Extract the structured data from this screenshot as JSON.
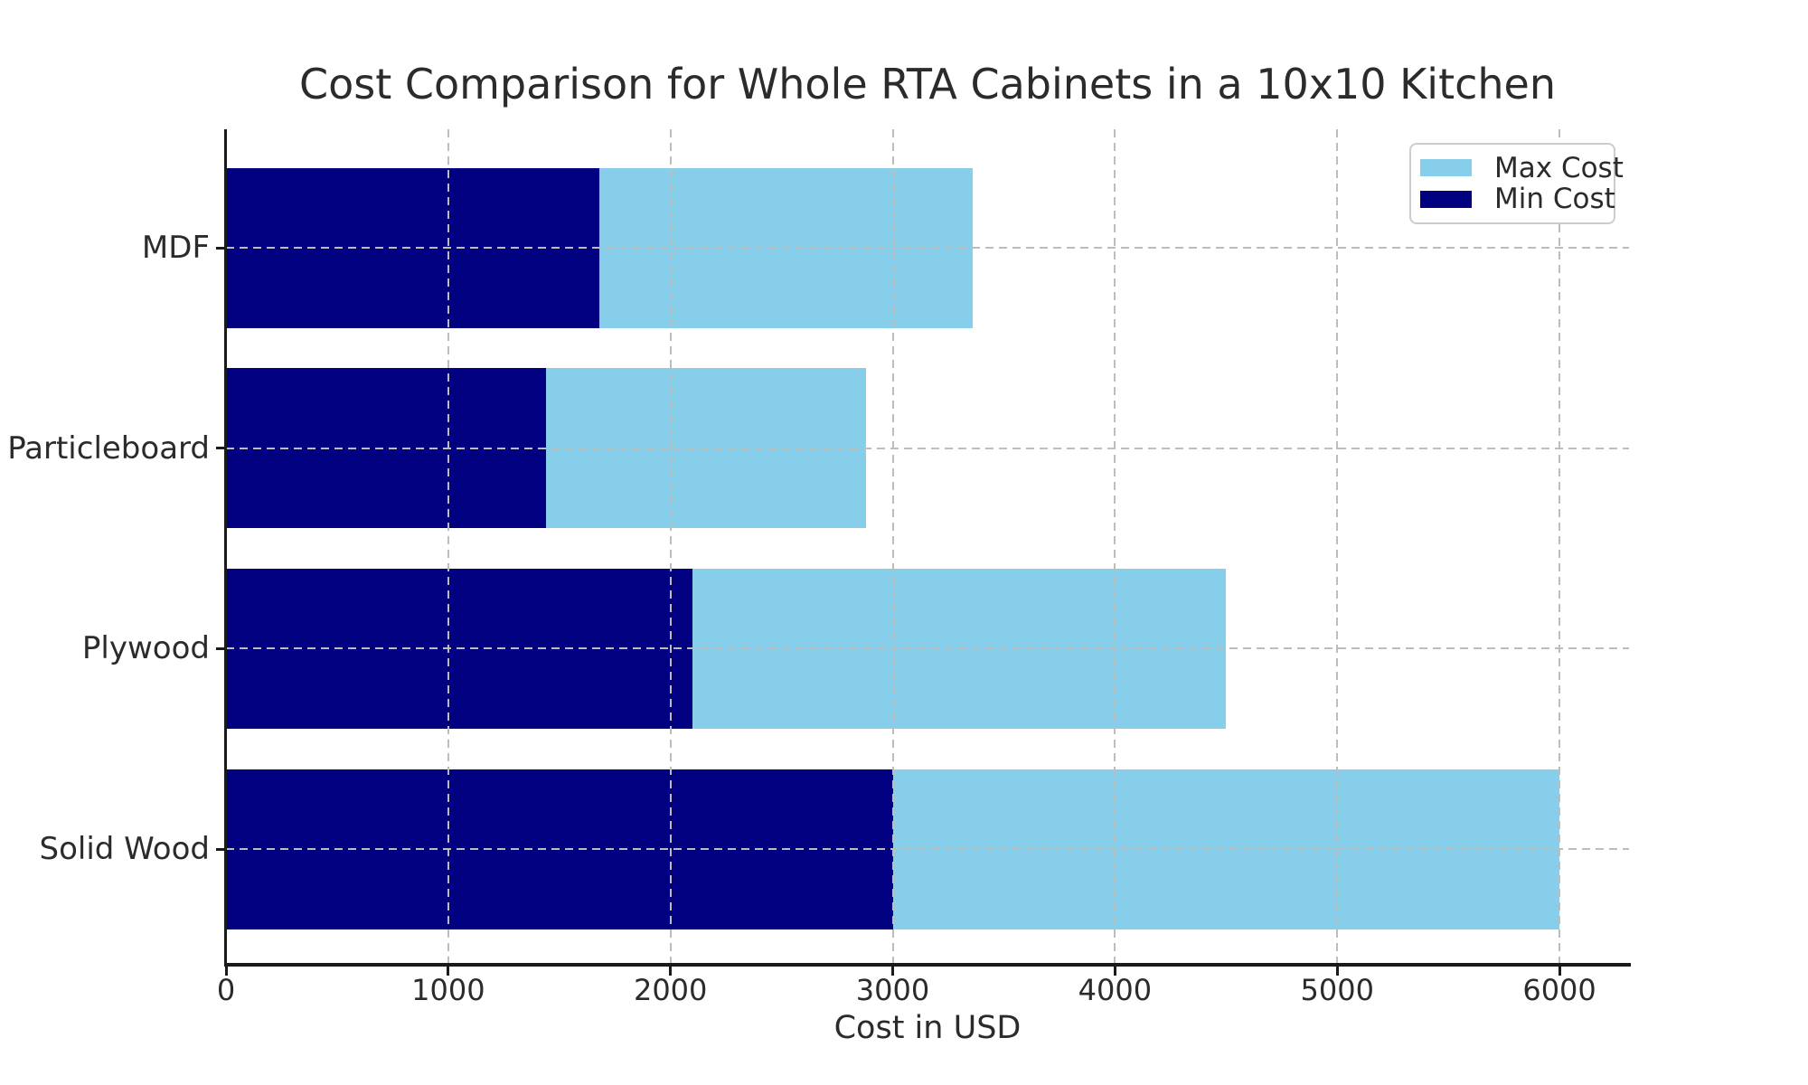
{
  "figure": {
    "background": "#ffffff"
  },
  "chart_data": {
    "type": "bar",
    "orientation": "horizontal",
    "title": "Cost Comparison for Whole RTA Cabinets in a 10x10 Kitchen",
    "xlabel": "Cost in USD",
    "ylabel": "",
    "categories": [
      "MDF",
      "Particleboard",
      "Plywood",
      "Solid Wood"
    ],
    "series": [
      {
        "name": "Max Cost",
        "color": "#87CEEB",
        "values": [
          3360,
          2880,
          4500,
          6000
        ]
      },
      {
        "name": "Min Cost",
        "color": "#000080",
        "values": [
          1680,
          1440,
          2100,
          3000
        ]
      }
    ],
    "x_ticks": [
      0,
      1000,
      2000,
      3000,
      4000,
      5000,
      6000
    ],
    "xlim": [
      0,
      6313
    ],
    "grid": true,
    "grid_style": "dashed",
    "legend_position": "upper right",
    "legend_entries": [
      "Max Cost",
      "Min Cost"
    ]
  },
  "colors": {
    "max_cost": "#87CEEB",
    "min_cost": "#000080",
    "grid": "#bdbdbd",
    "axis": "#1a1a1a",
    "text": "#2b2b2b"
  }
}
